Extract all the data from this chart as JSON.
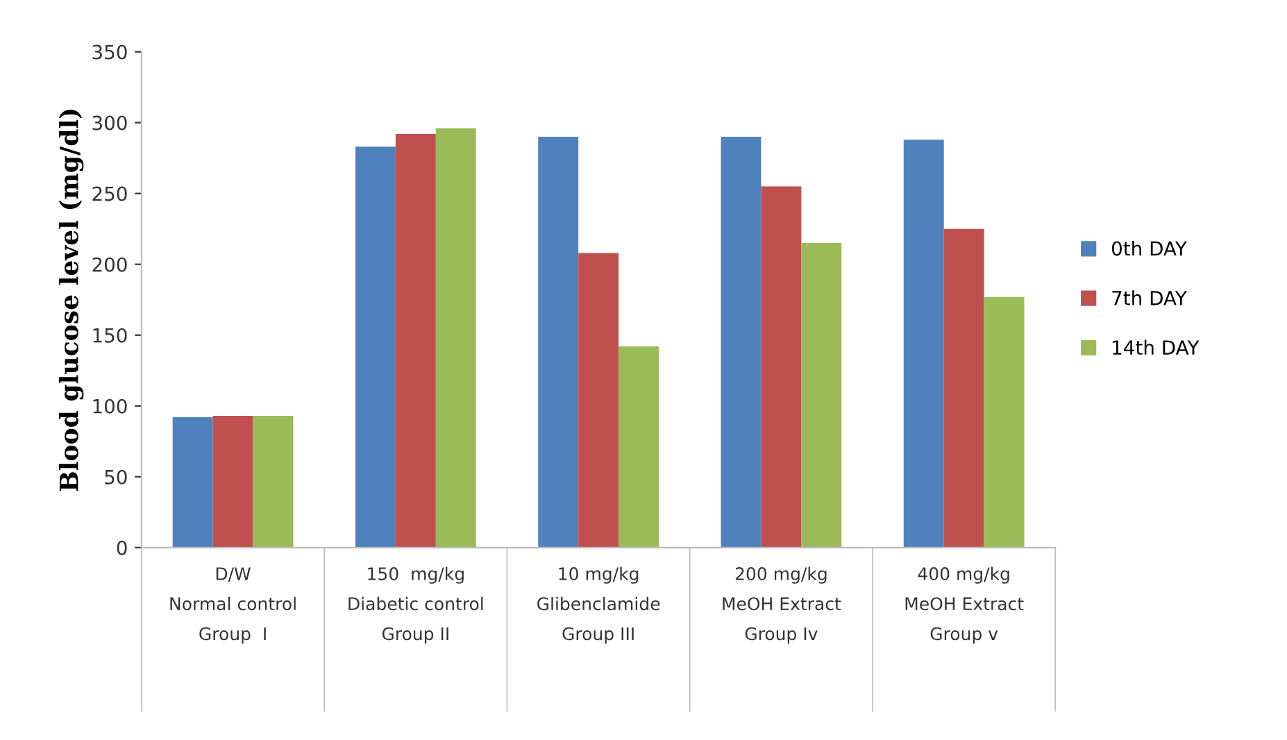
{
  "chart_data": {
    "type": "bar",
    "ylabel": "Blood glucose level (mg/dl)",
    "categories": [
      "D/W\nNormal control\nGroup  I",
      "150  mg/kg\nDiabetic control\nGroup II",
      "10 mg/kg\nGlibenclamide\nGroup III",
      "200 mg/kg\nMeOH Extract\nGroup Iv",
      "400 mg/kg\nMeOH Extract\nGroup v"
    ],
    "series": [
      {
        "name": "0th DAY",
        "color": "#4f81bd",
        "values": [
          92,
          283,
          290,
          290,
          288
        ]
      },
      {
        "name": "7th DAY",
        "color": "#c0504d",
        "values": [
          93,
          292,
          208,
          255,
          225
        ]
      },
      {
        "name": "14th DAY",
        "color": "#9bbb59",
        "values": [
          93,
          296,
          142,
          215,
          177
        ]
      }
    ],
    "ylim": [
      0,
      350
    ],
    "yticks": [
      0,
      50,
      100,
      150,
      200,
      250,
      300,
      350
    ],
    "grid": false,
    "legend": "right"
  }
}
